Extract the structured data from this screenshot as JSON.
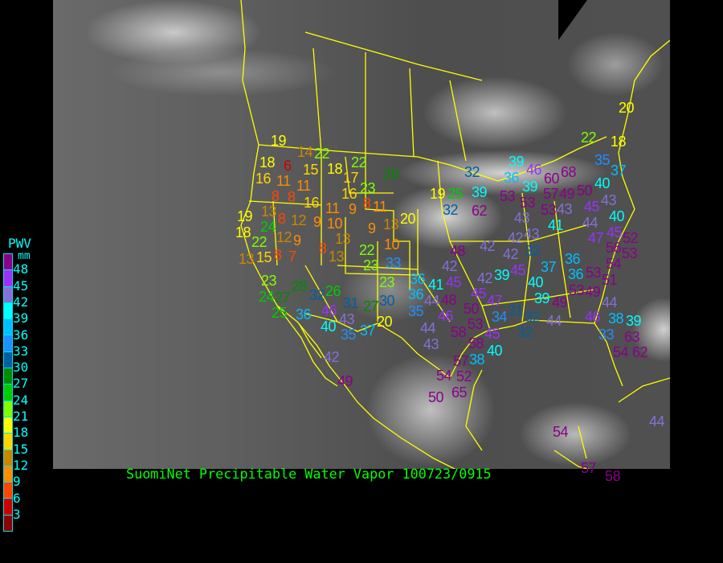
{
  "title": "SuomiNet Precipitable Water Vapor 100723/0915",
  "legend": {
    "title": "PWV",
    "unit": "mm",
    "labels": [
      "48",
      "45",
      "42",
      "39",
      "36",
      "33",
      "30",
      "27",
      "24",
      "21",
      "18",
      "15",
      "12",
      "9",
      "6",
      "3"
    ],
    "colors": [
      "#8b008b",
      "#9b30ff",
      "#8470d8",
      "#00ffff",
      "#00bfff",
      "#1e90ff",
      "#00609f",
      "#008b00",
      "#00cd00",
      "#7fff00",
      "#ffff00",
      "#ffd700",
      "#cd8500",
      "#ff8c00",
      "#ff4500",
      "#cd0000",
      "#8b0000"
    ]
  },
  "map": {
    "base_layer": "infrared satellite imagery",
    "overlay_color": "#ffff00",
    "stations": [
      18,
      19,
      14,
      22,
      6,
      15,
      18,
      22,
      17,
      28,
      16,
      11,
      8,
      8,
      11,
      16,
      16,
      23,
      8,
      11,
      9,
      11,
      13,
      19,
      24,
      8,
      12,
      9,
      10,
      9,
      13,
      20,
      18,
      22,
      12,
      9,
      13,
      15,
      10,
      22,
      23,
      13,
      8,
      7,
      8,
      13,
      33,
      23,
      24,
      27,
      28,
      25,
      32,
      26,
      46,
      31,
      36,
      43,
      40,
      35,
      27,
      30,
      23,
      20,
      37,
      36,
      36,
      35,
      42,
      49,
      39,
      36,
      46,
      32,
      39,
      60,
      57,
      68,
      53,
      53,
      53,
      49,
      50,
      19,
      25,
      39,
      32,
      62,
      43,
      41,
      45,
      43,
      35,
      37,
      40,
      40,
      43,
      44,
      47,
      45,
      43,
      42,
      42,
      42,
      48,
      56,
      52,
      53,
      54,
      32,
      42,
      36,
      45,
      39,
      37,
      36,
      53,
      51,
      41,
      45,
      42,
      45,
      40,
      39,
      53,
      49,
      44,
      48,
      46,
      50,
      47,
      49,
      44,
      31,
      32,
      34,
      32,
      44,
      46,
      38,
      39,
      44,
      43,
      53,
      58,
      45,
      58,
      40,
      38,
      33,
      63,
      54,
      62,
      57,
      52,
      54,
      65,
      50,
      20,
      22,
      18,
      44,
      54,
      57,
      58
    ]
  }
}
